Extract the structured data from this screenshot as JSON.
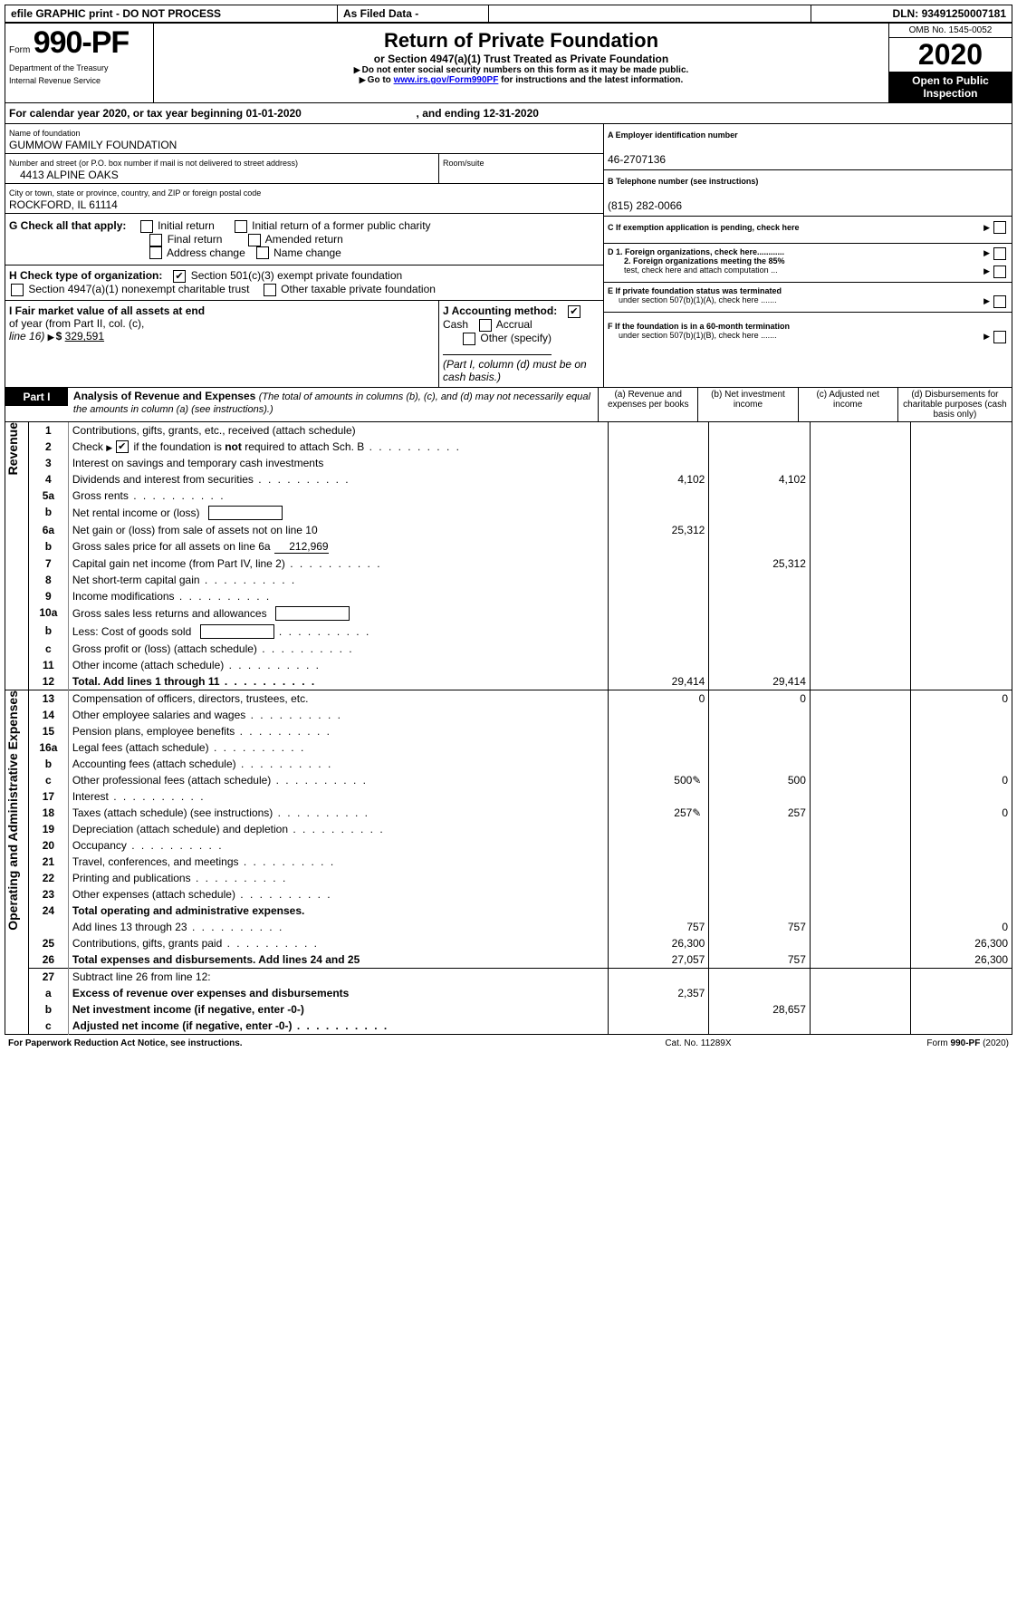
{
  "header_bar": {
    "efile": "efile GRAPHIC print - DO NOT PROCESS",
    "as_filed": "As Filed Data -",
    "dln_label": "DLN:",
    "dln": "93491250007181"
  },
  "form_box": {
    "form_word": "Form",
    "form_num": "990-PF",
    "dept": "Department of the Treasury",
    "irs": "Internal Revenue Service"
  },
  "title_box": {
    "title": "Return of Private Foundation",
    "subtitle": "or Section 4947(a)(1) Trust Treated as Private Foundation",
    "warn1": "Do not enter social security numbers on this form as it may be made public.",
    "warn2_pre": "Go to ",
    "warn2_link": "www.irs.gov/Form990PF",
    "warn2_post": " for instructions and the latest information."
  },
  "right_box": {
    "omb": "OMB No. 1545-0052",
    "year": "2020",
    "open": "Open to Public Inspection"
  },
  "cal_year": {
    "pre": "For calendar year 2020, or tax year beginning ",
    "begin": "01-01-2020",
    "mid": ", and ending ",
    "end": "12-31-2020"
  },
  "entity": {
    "name_label": "Name of foundation",
    "name": "GUMMOW FAMILY FOUNDATION",
    "addr_label": "Number and street (or P.O. box number if mail is not delivered to street address)",
    "room_label": "Room/suite",
    "addr": "4413 ALPINE OAKS",
    "city_label": "City or town, state or province, country, and ZIP or foreign postal code",
    "city": "ROCKFORD, IL  61114"
  },
  "right_entity": {
    "A_label": "A Employer identification number",
    "A": "46-2707136",
    "B_label": "B Telephone number (see instructions)",
    "B": "(815) 282-0066",
    "C_label": "C If exemption application is pending, check here",
    "D1": "D 1. Foreign organizations, check here............",
    "D2a": "2. Foreign organizations meeting the 85%",
    "D2b": "test, check here and attach computation ...",
    "E1": "E  If private foundation status was terminated",
    "E2": "under section 507(b)(1)(A), check here .......",
    "F1": "F  If the foundation is in a 60-month termination",
    "F2": "under section 507(b)(1)(B), check here ......."
  },
  "G": {
    "label": "G Check all that apply:",
    "o1": "Initial return",
    "o2": "Initial return of a former public charity",
    "o3": "Final return",
    "o4": "Amended return",
    "o5": "Address change",
    "o6": "Name change"
  },
  "H": {
    "label": "H Check type of organization:",
    "o1": "Section 501(c)(3) exempt private foundation",
    "o2": "Section 4947(a)(1) nonexempt charitable trust",
    "o3": "Other taxable private foundation"
  },
  "I": {
    "label1": "I Fair market value of all assets at end",
    "label2": "of year (from Part II, col. (c),",
    "label3": "line 16)",
    "amount": "329,591"
  },
  "J": {
    "label": "J Accounting method:",
    "o1": "Cash",
    "o2": "Accrual",
    "o3": "Other (specify)",
    "note": "(Part I, column (d) must be on cash basis.)"
  },
  "part1": {
    "label": "Part I",
    "title": "Analysis of Revenue and Expenses",
    "title_note": " (The total of amounts in columns (b), (c), and (d) may not necessarily equal the amounts in column (a) (see instructions).)",
    "col_a": "(a)   Revenue and expenses per books",
    "col_b": "(b)  Net investment income",
    "col_c": "(c)  Adjusted net income",
    "col_d": "(d)  Disbursements for charitable purposes (cash basis only)"
  },
  "sections": {
    "revenue": "Revenue",
    "expenses": "Operating and Administrative Expenses"
  },
  "rows": [
    {
      "n": "1",
      "d": "Contributions, gifts, grants, etc., received (attach schedule)"
    },
    {
      "n": "2",
      "d_pre": "Check ",
      "d_post": " if the foundation is ",
      "d_bold": "not",
      "d_end": " required to attach Sch. B",
      "chk": true,
      "dots": true
    },
    {
      "n": "3",
      "d": "Interest on savings and temporary cash investments"
    },
    {
      "n": "4",
      "d": "Dividends and interest from securities",
      "a": "4,102",
      "b": "4,102",
      "dots": true
    },
    {
      "n": "5a",
      "d": "Gross rents",
      "dots": true
    },
    {
      "n": "b",
      "d": "Net rental income or (loss)",
      "blank_after": true
    },
    {
      "n": "6a",
      "d": "Net gain or (loss) from sale of assets not on line 10",
      "a": "25,312"
    },
    {
      "n": "b",
      "d": "Gross sales price for all assets on line 6a",
      "inline_val": "212,969"
    },
    {
      "n": "7",
      "d": "Capital gain net income (from Part IV, line 2)",
      "b": "25,312",
      "dots": true
    },
    {
      "n": "8",
      "d": "Net short-term capital gain",
      "dots": true
    },
    {
      "n": "9",
      "d": "Income modifications",
      "dots": true
    },
    {
      "n": "10a",
      "d": "Gross sales less returns and allowances",
      "blank_after": true
    },
    {
      "n": "b",
      "d": "Less: Cost of goods sold",
      "dots": true,
      "blank_after": true
    },
    {
      "n": "c",
      "d": "Gross profit or (loss) (attach schedule)",
      "dots": true
    },
    {
      "n": "11",
      "d": "Other income (attach schedule)",
      "dots": true
    },
    {
      "n": "12",
      "d": "Total. Add lines 1 through 11",
      "a": "29,414",
      "b": "29,414",
      "bold": true,
      "dots": true
    },
    {
      "n": "13",
      "d": "Compensation of officers, directors, trustees, etc.",
      "a": "0",
      "b": "0",
      "dd": "0"
    },
    {
      "n": "14",
      "d": "Other employee salaries and wages",
      "dots": true
    },
    {
      "n": "15",
      "d": "Pension plans, employee benefits",
      "dots": true
    },
    {
      "n": "16a",
      "d": "Legal fees (attach schedule)",
      "dots": true
    },
    {
      "n": "b",
      "d": "Accounting fees (attach schedule)",
      "dots": true
    },
    {
      "n": "c",
      "d": "Other professional fees (attach schedule)",
      "a": "500",
      "b": "500",
      "dd": "0",
      "icon": true,
      "dots": true
    },
    {
      "n": "17",
      "d": "Interest",
      "dots": true
    },
    {
      "n": "18",
      "d": "Taxes (attach schedule) (see instructions)",
      "a": "257",
      "b": "257",
      "dd": "0",
      "icon": true,
      "dots": true
    },
    {
      "n": "19",
      "d": "Depreciation (attach schedule) and depletion",
      "dots": true
    },
    {
      "n": "20",
      "d": "Occupancy",
      "dots": true
    },
    {
      "n": "21",
      "d": "Travel, conferences, and meetings",
      "dots": true
    },
    {
      "n": "22",
      "d": "Printing and publications",
      "dots": true
    },
    {
      "n": "23",
      "d": "Other expenses (attach schedule)",
      "dots": true
    },
    {
      "n": "24",
      "d": "Total operating and administrative expenses.",
      "bold": true
    },
    {
      "n": "",
      "d": "Add lines 13 through 23",
      "a": "757",
      "b": "757",
      "dd": "0",
      "dots": true
    },
    {
      "n": "25",
      "d": "Contributions, gifts, grants paid",
      "a": "26,300",
      "dd": "26,300",
      "dots": true
    },
    {
      "n": "26",
      "d": "Total expenses and disbursements. Add lines 24 and 25",
      "a": "27,057",
      "b": "757",
      "dd": "26,300",
      "bold": true
    },
    {
      "n": "27",
      "d": "Subtract line 26 from line 12:"
    },
    {
      "n": "a",
      "d": "Excess of revenue over expenses and disbursements",
      "a": "2,357",
      "bold": true
    },
    {
      "n": "b",
      "d": "Net investment income (if negative, enter -0-)",
      "b": "28,657",
      "bold": true
    },
    {
      "n": "c",
      "d": "Adjusted net income (if negative, enter -0-)",
      "bold": true,
      "dots": true
    }
  ],
  "footer": {
    "left": "For Paperwork Reduction Act Notice, see instructions.",
    "mid": "Cat. No. 11289X",
    "right": "Form 990-PF (2020)"
  }
}
